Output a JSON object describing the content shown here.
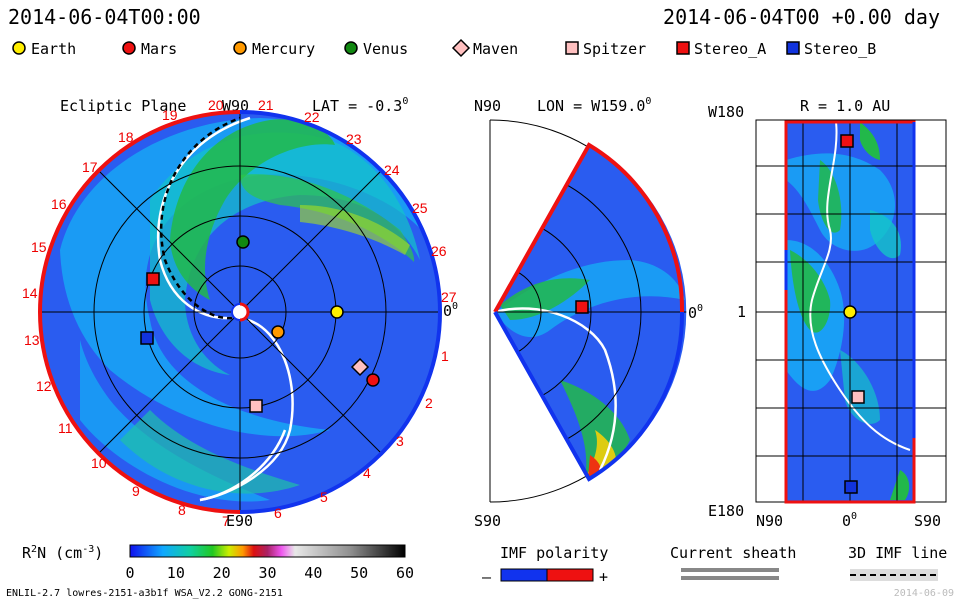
{
  "header": {
    "timestamp": "2014-06-04T00:00",
    "time_offset": "2014-06-04T00 +0.00 day"
  },
  "legend": [
    {
      "label": "Earth",
      "shape": "circle",
      "color": "#ffee00"
    },
    {
      "label": "Mars",
      "shape": "circle",
      "color": "#ee1111"
    },
    {
      "label": "Mercury",
      "shape": "circle",
      "color": "#ff9900"
    },
    {
      "label": "Venus",
      "shape": "circle",
      "color": "#118811"
    },
    {
      "label": "Maven",
      "shape": "diamond",
      "color": "#ffc0c0"
    },
    {
      "label": "Spitzer",
      "shape": "square",
      "color": "#ffc0c0"
    },
    {
      "label": "Stereo_A",
      "shape": "square",
      "color": "#ee1111"
    },
    {
      "label": "Stereo_B",
      "shape": "square",
      "color": "#1133dd"
    }
  ],
  "panel_ecliptic": {
    "title": "Ecliptic Plane",
    "top_label": "W90",
    "bottom_label": "E90",
    "right_label": "0",
    "right_label_sup": "0",
    "lat_label": "LAT = -0.3",
    "lat_label_sup": "0",
    "carrington_ticks": [
      "1",
      "2",
      "3",
      "4",
      "5",
      "6",
      "7",
      "8",
      "9",
      "10",
      "11",
      "12",
      "13",
      "14",
      "15",
      "16",
      "17",
      "18",
      "19",
      "20",
      "21",
      "22",
      "23",
      "24",
      "25",
      "26",
      "27"
    ]
  },
  "panel_meridional": {
    "top_label": "N90",
    "bottom_label": "S90",
    "right_label": "0",
    "right_label_sup": "0",
    "lon_label": "LON = W159.0",
    "lon_label_sup": "0"
  },
  "panel_radial": {
    "r_label": "R = 1.0 AU",
    "top_left": "W180",
    "bottom_left": "E180",
    "middle_left": "1",
    "bottom_axis": [
      "N90",
      "0",
      "S90"
    ],
    "bottom_axis_sup": "0"
  },
  "colorbar": {
    "label": "R",
    "label_sup": "2",
    "label_rest": "N (cm",
    "label_sup2": "-3",
    "label_end": ")",
    "ticks": [
      "0",
      "10",
      "20",
      "30",
      "40",
      "50",
      "60"
    ]
  },
  "imf_legend": {
    "title": "IMF polarity",
    "minus": "–",
    "plus": "+",
    "sheath_title": "Current sheath",
    "line_title": "3D IMF line"
  },
  "footer": {
    "left": "ENLIL-2.7 lowres-2151-a3b1f WSA_V2.2 GONG-2151",
    "right": "2014-06-09"
  },
  "chart_data": {
    "type": "heatmap",
    "title": "",
    "colorbar_range": [
      0,
      60
    ],
    "colorbar_ticks": [
      0,
      10,
      20,
      30,
      40,
      50,
      60
    ],
    "quantity": "R^2 N (cm^-3)",
    "bodies": [
      "Earth",
      "Mars",
      "Mercury",
      "Venus",
      "Maven",
      "Spitzer",
      "Stereo_A",
      "Stereo_B"
    ]
  }
}
